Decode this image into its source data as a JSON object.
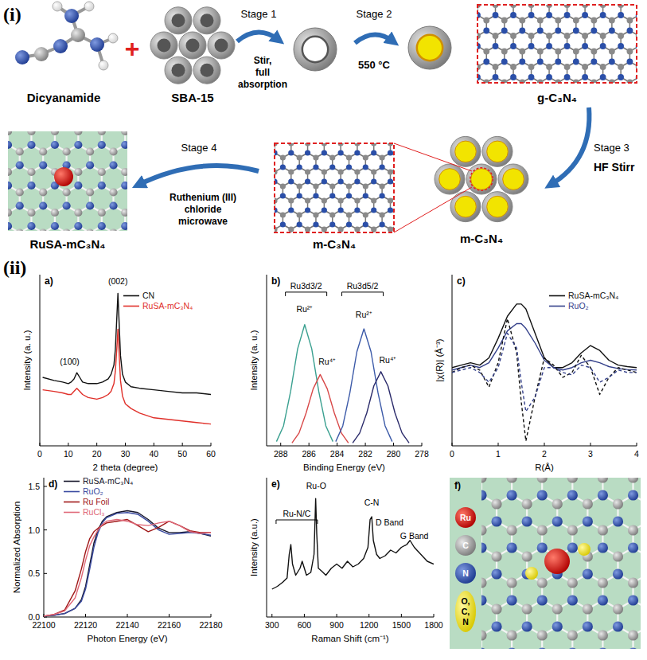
{
  "scheme": {
    "label": "(i)",
    "plus": "+",
    "materials": [
      {
        "label": "Dicyanamide"
      },
      {
        "label": "SBA-15"
      },
      {
        "label": "g-C₃N₄"
      },
      {
        "label": "m-C₃N₄"
      },
      {
        "label": "m-C₃N₄"
      },
      {
        "label": "RuSA-mC₃N₄"
      }
    ],
    "stages": [
      {
        "label": "Stage 1",
        "text": [
          "Stir,",
          "full",
          "absorption"
        ]
      },
      {
        "label": "Stage 2",
        "text": [
          "550 °C"
        ]
      },
      {
        "label": "Stage 3",
        "text": [
          "HF Stirr"
        ]
      },
      {
        "label": "Stage 4",
        "text": [
          "Ruthenium (III)",
          "chloride",
          "microwave"
        ]
      }
    ]
  },
  "section_label": "(ii)",
  "chart_data": [
    {
      "type": "line",
      "title": "a)",
      "x_label": "2 theta (degree)",
      "y_label": "Intensity (a. u.)",
      "xlim": [
        0,
        60
      ],
      "xticks": [
        0,
        10,
        20,
        30,
        40,
        50,
        60
      ],
      "ylim": [
        0,
        110
      ],
      "tick_labels": "x",
      "legend": "top-right",
      "series": [
        {
          "name": "CN",
          "color": "#111111",
          "x": [
            1,
            5,
            8,
            10,
            11,
            12,
            13,
            14,
            15,
            17,
            20,
            22,
            24,
            25,
            26,
            26.5,
            27,
            27.4,
            27.8,
            28.3,
            29,
            30,
            32,
            35,
            40,
            45,
            50,
            55,
            60
          ],
          "values": [
            44,
            42,
            41,
            40,
            41,
            43,
            47,
            44,
            41,
            40,
            40,
            41,
            43,
            46,
            52,
            62,
            82,
            98,
            80,
            58,
            46,
            41,
            38,
            37,
            36,
            35,
            34,
            34,
            33
          ]
        },
        {
          "name": "RuSA-mC₃N₄",
          "color": "#e0302a",
          "x": [
            1,
            5,
            8,
            10,
            11,
            12,
            13,
            14,
            15,
            17,
            20,
            22,
            24,
            25,
            26,
            26.5,
            27,
            27.4,
            27.8,
            28.3,
            29,
            30,
            32,
            35,
            40,
            45,
            50,
            55,
            60
          ],
          "values": [
            36,
            35,
            34,
            33,
            33,
            35,
            37,
            35,
            33,
            31,
            30,
            31,
            33,
            35,
            40,
            48,
            62,
            75,
            60,
            42,
            32,
            27,
            24,
            21,
            18,
            17,
            16,
            15,
            14
          ]
        }
      ],
      "annotations": [
        {
          "text": "(100)",
          "x": 10.5,
          "y": 52
        },
        {
          "text": "(002)",
          "x": 27.4,
          "y": 104
        }
      ]
    },
    {
      "type": "line",
      "title": "b)",
      "x_label": "Binding Energy (eV)",
      "y_label": "Intensity (a. u.)",
      "xlim": [
        289,
        278
      ],
      "xticks": [
        288,
        286,
        284,
        282,
        280,
        278
      ],
      "ylim": [
        0,
        120
      ],
      "tick_labels": "x",
      "series": [
        {
          "color": "#3aa090",
          "x": [
            288.3,
            287.8,
            287.3,
            286.8,
            286.3,
            285.8,
            285.3,
            284.8,
            284.3
          ],
          "values": [
            3,
            14,
            38,
            68,
            85,
            68,
            38,
            14,
            3
          ]
        },
        {
          "color": "#d84848",
          "x": [
            287.2,
            286.7,
            286.2,
            285.7,
            285.2,
            284.7,
            284.2,
            283.7,
            283.2
          ],
          "values": [
            2,
            9,
            23,
            40,
            50,
            40,
            23,
            9,
            2
          ]
        },
        {
          "color": "#3c5aa8",
          "x": [
            284.1,
            283.6,
            283.1,
            282.6,
            282.1,
            281.6,
            281.1,
            280.6,
            280.1
          ],
          "values": [
            3,
            14,
            37,
            66,
            82,
            66,
            37,
            14,
            3
          ]
        },
        {
          "color": "#2a2a6a",
          "x": [
            282.9,
            282.4,
            281.9,
            281.4,
            280.9,
            280.4,
            279.9,
            279.4,
            278.9
          ],
          "values": [
            2,
            9,
            23,
            42,
            52,
            42,
            23,
            9,
            2
          ]
        }
      ],
      "bracket_labels": [
        {
          "text": "Ru3d3/2",
          "x": 286.2,
          "y": 110
        },
        {
          "text": "Ru3d5/2",
          "x": 282.2,
          "y": 110
        }
      ],
      "annotations": [
        {
          "text": "Ru²⁺",
          "x": 286.3,
          "y": 94
        },
        {
          "text": "Ru⁴⁺",
          "x": 284.7,
          "y": 57
        },
        {
          "text": "Ru²⁺",
          "x": 282.1,
          "y": 90
        },
        {
          "text": "Ru⁴⁺",
          "x": 280.4,
          "y": 58
        }
      ]
    },
    {
      "type": "line",
      "title": "c)",
      "x_label": "R(Å)",
      "y_label": "|χ(R)| (Å⁻³)",
      "xlim": [
        0,
        4
      ],
      "xticks": [
        0,
        1,
        2,
        3,
        4
      ],
      "ylim": [
        -1.5,
        2.0
      ],
      "tick_labels": "x",
      "legend": "top-right",
      "series": [
        {
          "name": "RuSA-mC₃N₄",
          "color": "#111111",
          "line_style": "solid",
          "x": [
            0,
            0.2,
            0.4,
            0.6,
            0.8,
            1.0,
            1.2,
            1.4,
            1.5,
            1.6,
            1.8,
            2.0,
            2.2,
            2.4,
            2.6,
            2.8,
            3.0,
            3.2,
            3.4,
            3.6,
            3.8,
            4.0
          ],
          "values": [
            0.1,
            0.15,
            0.2,
            0.15,
            0.3,
            0.7,
            1.15,
            1.4,
            1.4,
            1.3,
            0.8,
            0.3,
            0.1,
            0.1,
            0.2,
            0.4,
            0.55,
            0.45,
            0.25,
            0.15,
            0.12,
            0.1
          ]
        },
        {
          "name": "RuO₂",
          "color": "#34408a",
          "line_style": "solid",
          "x": [
            0,
            0.2,
            0.4,
            0.6,
            0.8,
            1.0,
            1.2,
            1.4,
            1.5,
            1.6,
            1.8,
            2.0,
            2.2,
            2.4,
            2.6,
            2.8,
            3.0,
            3.2,
            3.4,
            3.6,
            3.8,
            4.0
          ],
          "values": [
            0.05,
            0.1,
            0.15,
            0.1,
            0.2,
            0.5,
            0.85,
            1.0,
            1.0,
            0.9,
            0.6,
            0.25,
            0.1,
            0.05,
            0.1,
            0.2,
            0.25,
            0.2,
            0.12,
            0.08,
            0.06,
            0.05
          ]
        },
        {
          "color": "#111111",
          "line_style": "dashed",
          "x": [
            0,
            0.2,
            0.4,
            0.6,
            0.8,
            1.0,
            1.2,
            1.4,
            1.5,
            1.6,
            1.8,
            2.0,
            2.2,
            2.4,
            2.6,
            2.8,
            3.0,
            3.2,
            3.4,
            3.6,
            3.8,
            4.0
          ],
          "values": [
            0,
            0.1,
            0.15,
            0.05,
            -0.3,
            0.2,
            1.1,
            0.4,
            -0.6,
            -1.4,
            -0.5,
            0.3,
            0.15,
            -0.1,
            0,
            0.35,
            0.1,
            -0.45,
            -0.1,
            0.1,
            0.05,
            0
          ]
        },
        {
          "color": "#34408a",
          "line_style": "dashed",
          "x": [
            0,
            0.2,
            0.4,
            0.6,
            0.8,
            1.0,
            1.2,
            1.4,
            1.5,
            1.6,
            1.8,
            2.0,
            2.2,
            2.4,
            2.6,
            2.8,
            3.0,
            3.2,
            3.4,
            3.6,
            3.8,
            4.0
          ],
          "values": [
            0,
            0.05,
            0.1,
            0,
            -0.2,
            0.1,
            0.8,
            0.5,
            -0.2,
            -0.8,
            -0.5,
            0.1,
            0.1,
            0,
            -0.05,
            0.15,
            0.1,
            -0.2,
            -0.1,
            0.05,
            0,
            0
          ]
        }
      ]
    },
    {
      "type": "line",
      "title": "d)",
      "x_label": "Photon Energy (eV)",
      "y_label": "Normalized Absorption",
      "xlim": [
        22100,
        22180
      ],
      "xticks": [
        22100,
        22120,
        22140,
        22160,
        22180
      ],
      "ylim": [
        0,
        1.6
      ],
      "yticks": [
        {
          "value": 0,
          "label": "0.0"
        },
        0.5,
        {
          "value": 1,
          "label": "1.0"
        },
        1.5
      ],
      "legend": "top-left",
      "series": [
        {
          "name": "RuSA-mC₃N₄",
          "color": "#15152a",
          "x": [
            22100,
            22105,
            22110,
            22115,
            22118,
            22120,
            22122,
            22124,
            22126,
            22128,
            22130,
            22135,
            22140,
            22145,
            22150,
            22155,
            22160,
            22165,
            22170,
            22175,
            22180
          ],
          "values": [
            0.01,
            0.02,
            0.04,
            0.1,
            0.2,
            0.35,
            0.6,
            0.85,
            1.0,
            1.1,
            1.15,
            1.2,
            1.22,
            1.2,
            1.12,
            1.02,
            0.97,
            0.97,
            0.98,
            0.96,
            0.93
          ]
        },
        {
          "name": "RuO₂",
          "color": "#3a4aa0",
          "x": [
            22100,
            22105,
            22110,
            22115,
            22118,
            22120,
            22122,
            22124,
            22126,
            22128,
            22130,
            22135,
            22140,
            22145,
            22150,
            22155,
            22160,
            22165,
            22170,
            22175,
            22180
          ],
          "values": [
            0.01,
            0.02,
            0.04,
            0.1,
            0.18,
            0.32,
            0.55,
            0.8,
            0.97,
            1.08,
            1.14,
            1.19,
            1.2,
            1.18,
            1.1,
            1.0,
            0.95,
            0.96,
            0.97,
            0.96,
            0.94
          ]
        },
        {
          "name": "Ru Foil",
          "color": "#a01818",
          "x": [
            22100,
            22105,
            22110,
            22115,
            22118,
            22120,
            22122,
            22124,
            22126,
            22128,
            22130,
            22135,
            22140,
            22145,
            22150,
            22155,
            22160,
            22165,
            22170,
            22175,
            22180
          ],
          "values": [
            0.01,
            0.03,
            0.08,
            0.3,
            0.55,
            0.75,
            0.9,
            0.98,
            1.02,
            1.05,
            1.08,
            1.1,
            1.12,
            1.05,
            0.98,
            1.03,
            1.1,
            1.05,
            0.99,
            0.97,
            0.97
          ]
        },
        {
          "name": "RuCl₃",
          "color": "#e06878",
          "x": [
            22100,
            22105,
            22110,
            22115,
            22118,
            22120,
            22122,
            22124,
            22126,
            22128,
            22130,
            22135,
            22140,
            22145,
            22150,
            22155,
            22160,
            22165,
            22170,
            22175,
            22180
          ],
          "values": [
            0.01,
            0.03,
            0.07,
            0.22,
            0.45,
            0.65,
            0.82,
            0.92,
            1.0,
            1.06,
            1.1,
            1.12,
            1.1,
            1.06,
            1.05,
            1.08,
            1.1,
            1.05,
            0.98,
            0.96,
            0.97
          ]
        }
      ]
    },
    {
      "type": "line",
      "title": "e)",
      "x_label": "Raman Shift (cm⁻¹)",
      "y_label": "Intensity (a.u.)",
      "xlim": [
        250,
        1800
      ],
      "xticks": [
        300,
        600,
        900,
        1200,
        1500,
        1800
      ],
      "ylim": [
        0,
        100
      ],
      "tick_labels": "x",
      "series": [
        {
          "color": "#111111",
          "x": [
            300,
            350,
            400,
            440,
            460,
            475,
            490,
            520,
            560,
            580,
            620,
            660,
            690,
            705,
            715,
            730,
            760,
            800,
            850,
            900,
            950,
            1000,
            1050,
            1100,
            1150,
            1190,
            1210,
            1225,
            1240,
            1270,
            1300,
            1350,
            1400,
            1450,
            1500,
            1550,
            1580,
            1620,
            1680,
            1740,
            1800
          ],
          "values": [
            20,
            22,
            25,
            28,
            45,
            52,
            38,
            30,
            35,
            40,
            30,
            32,
            45,
            85,
            60,
            35,
            33,
            30,
            35,
            38,
            35,
            40,
            36,
            38,
            42,
            50,
            70,
            72,
            55,
            45,
            42,
            44,
            48,
            46,
            50,
            52,
            55,
            50,
            45,
            40,
            38
          ]
        }
      ],
      "bracket_labels": [
        {
          "text": "Ru-N/C",
          "x": 530,
          "y": 72
        }
      ],
      "annotations": [
        {
          "text": "Ru-O",
          "x": 710,
          "y": 92
        },
        {
          "text": "C-N",
          "x": 1225,
          "y": 80
        },
        {
          "text": "D Band",
          "x": 1390,
          "y": 66
        },
        {
          "text": "G Band",
          "x": 1620,
          "y": 56
        }
      ]
    }
  ],
  "panel_f": {
    "label": "f)",
    "legend": [
      {
        "label": [
          "Ru"
        ]
      },
      {
        "label": [
          "C"
        ]
      },
      {
        "label": [
          "N"
        ]
      },
      {
        "label": [
          "O,",
          "C,",
          "N"
        ]
      }
    ]
  }
}
